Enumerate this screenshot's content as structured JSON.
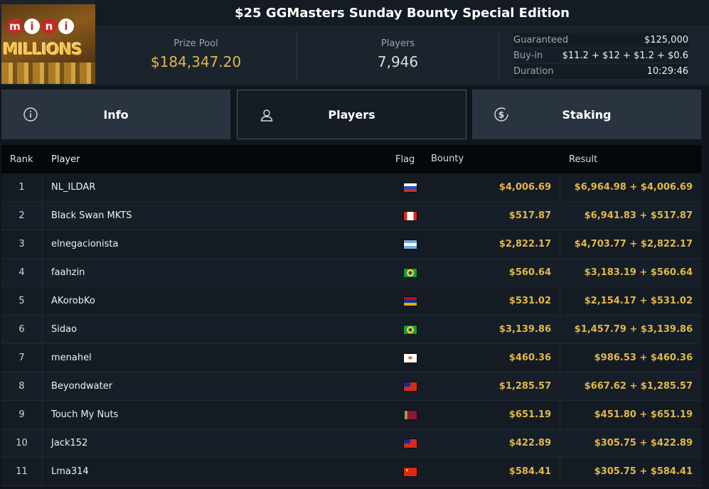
{
  "header": {
    "title": "$25 GGMasters Sunday Bounty Special Edition",
    "logo_balls": [
      "m",
      "i",
      "n",
      "i"
    ],
    "logo_text": "MILLIONS",
    "prize_pool_label": "Prize Pool",
    "prize_pool_value": "$184,347.20",
    "players_label": "Players",
    "players_value": "7,946",
    "details": [
      {
        "key": "Guaranteed",
        "value": "$125,000"
      },
      {
        "key": "Buy-in",
        "value": "$11.2 + $12 + $1.2 + $0.6"
      },
      {
        "key": "Duration",
        "value": "10:29:46"
      }
    ]
  },
  "tabs": [
    {
      "label": "Info",
      "icon": "info-icon"
    },
    {
      "label": "Players",
      "icon": "user-icon",
      "active": true
    },
    {
      "label": "Staking",
      "icon": "dollar-icon"
    }
  ],
  "table": {
    "columns": {
      "rank": "Rank",
      "player": "Player",
      "flag": "Flag",
      "bounty": "Bounty",
      "result": "Result"
    },
    "rows": [
      {
        "rank": "1",
        "player": "NL_ILDAR",
        "flag": "russia",
        "bounty": "$4,006.69",
        "result": "$6,964.98 + $4,006.69"
      },
      {
        "rank": "2",
        "player": "Black Swan MKTS",
        "flag": "canada",
        "bounty": "$517.87",
        "result": "$6,941.83 + $517.87"
      },
      {
        "rank": "3",
        "player": "elnegacionista",
        "flag": "argentina",
        "bounty": "$2,822.17",
        "result": "$4,703.77 + $2,822.17"
      },
      {
        "rank": "4",
        "player": "faahzin",
        "flag": "brazil",
        "bounty": "$560.64",
        "result": "$3,183.19 + $560.64"
      },
      {
        "rank": "5",
        "player": "AKorobKo",
        "flag": "armenia",
        "bounty": "$531.02",
        "result": "$2,154.17 + $531.02"
      },
      {
        "rank": "6",
        "player": "Sidao",
        "flag": "brazil",
        "bounty": "$3,139.86",
        "result": "$1,457.79 + $3,139.86"
      },
      {
        "rank": "7",
        "player": "menahel",
        "flag": "cyprus",
        "bounty": "$460.36",
        "result": "$986.53 + $460.36"
      },
      {
        "rank": "8",
        "player": "Beyondwater",
        "flag": "taiwan",
        "bounty": "$1,285.57",
        "result": "$667.62 + $1,285.57"
      },
      {
        "rank": "9",
        "player": "Touch My Nuts",
        "flag": "sri-lanka",
        "bounty": "$651.19",
        "result": "$451.80 + $651.19"
      },
      {
        "rank": "10",
        "player": "Jack152",
        "flag": "taiwan",
        "bounty": "$422.89",
        "result": "$305.75 + $422.89"
      },
      {
        "rank": "11",
        "player": "Lma314",
        "flag": "china",
        "bounty": "$584.41",
        "result": "$305.75 + $584.41"
      }
    ]
  }
}
